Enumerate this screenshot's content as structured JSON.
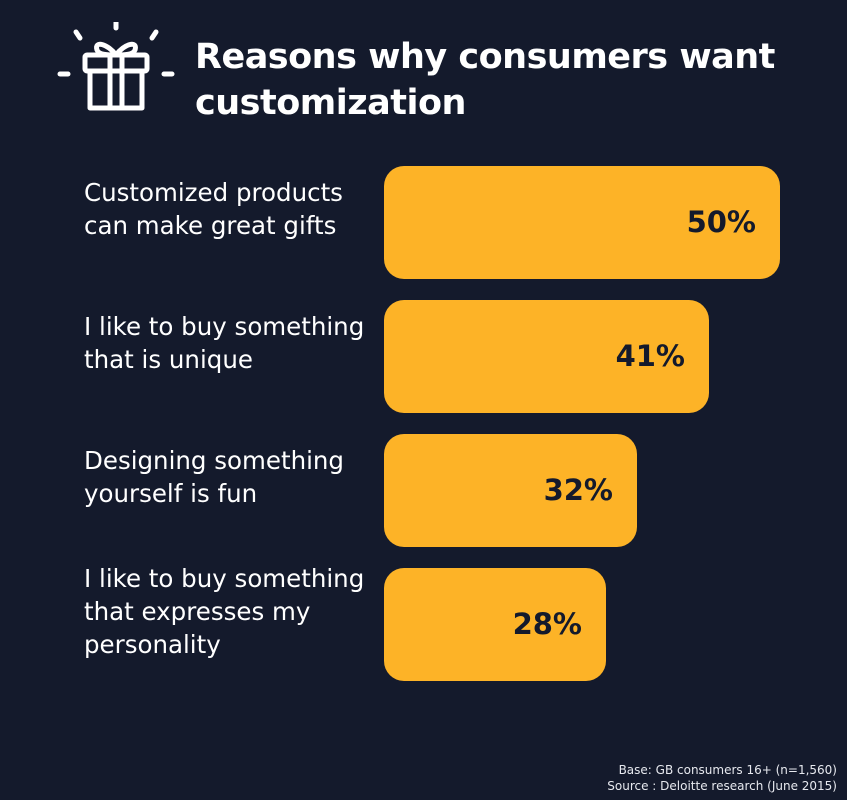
{
  "header": {
    "title": "Reasons why consumers want customization",
    "icon": "gift-icon"
  },
  "colors": {
    "background": "#141a2c",
    "bar": "#fdb327",
    "value_text": "#141a2c",
    "text": "#ffffff"
  },
  "chart_data": {
    "type": "bar",
    "orientation": "horizontal",
    "title": "Reasons why consumers want customization",
    "categories": [
      "Customized products can make great gifts",
      "I like to buy something that is unique",
      "Designing something yourself is fun",
      "I like to buy something that expresses my personality"
    ],
    "values": [
      50,
      41,
      32,
      28
    ],
    "value_labels": [
      "50%",
      "41%",
      "32%",
      "28%"
    ],
    "unit": "%",
    "xlim": [
      0,
      50
    ],
    "grid": false
  },
  "footnote": {
    "base": "Base: GB consumers 16+ (n=1,560)",
    "source": "Source : Deloitte research (June 2015)"
  }
}
